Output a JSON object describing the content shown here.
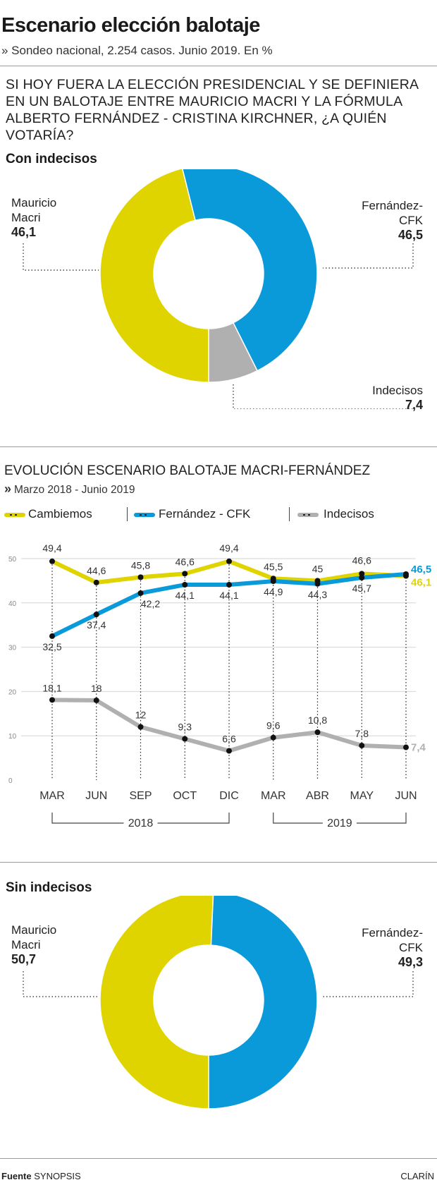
{
  "header": {
    "title": "Escenario elección balotaje",
    "subtitle": "» Sondeo nacional, 2.254 casos. Junio 2019. En %",
    "question": "SI HOY FUERA LA ELECCIÓN PRESIDENCIAL Y SE DEFINIERA EN UN BALOTAJE ENTRE MAURICIO MACRI Y LA FÓRMULA ALBERTO FERNÁNDEZ - CRISTINA KIRCHNER, ¿A QUIÉN VOTARÍA?"
  },
  "colors": {
    "macri": "#e0d400",
    "fernandez": "#0a9ad9",
    "indecisos": "#b0b0b0"
  },
  "chart_data": [
    {
      "type": "pie",
      "title": "Con indecisos",
      "labels": [
        "Mauricio Macri",
        "Fernández-CFK",
        "Indecisos"
      ],
      "label_lines": [
        [
          "Mauricio",
          "Macri"
        ],
        [
          "Fernández-",
          "CFK"
        ],
        [
          "Indecisos"
        ]
      ],
      "values": [
        46.1,
        46.5,
        7.4
      ],
      "value_labels": [
        "46,1",
        "46,5",
        "7,4"
      ]
    },
    {
      "type": "line",
      "title": "EVOLUCIÓN ESCENARIO BALOTAJE MACRI-FERNÁNDEZ",
      "subtitle": "Marzo 2018 - Junio 2019",
      "categories": [
        "MAR",
        "JUN",
        "SEP",
        "OCT",
        "DIC",
        "MAR",
        "ABR",
        "MAY",
        "JUN"
      ],
      "year_groups": [
        {
          "label": "2018",
          "from": 0,
          "to": 4
        },
        {
          "label": "2019",
          "from": 5,
          "to": 8
        }
      ],
      "ylim": [
        0,
        50
      ],
      "yticks": [
        "0",
        "10",
        "20",
        "30",
        "40",
        "50"
      ],
      "series": [
        {
          "name": "Cambiemos",
          "values": [
            49.4,
            44.6,
            45.8,
            46.6,
            49.4,
            45.5,
            45,
            46.6,
            46.1
          ],
          "labels": [
            "49,4",
            "44,6",
            "45,8",
            "46,6",
            "49,4",
            "45,5",
            "45",
            "46,6",
            "46,1"
          ]
        },
        {
          "name": "Fernández - CFK",
          "values": [
            32.5,
            37.4,
            42.2,
            44.1,
            44.1,
            44.9,
            44.3,
            45.7,
            46.5
          ],
          "labels": [
            "32,5",
            "37,4",
            "42,2",
            "44,1",
            "44,1",
            "44,9",
            "44,3",
            "45,7",
            "46,5"
          ]
        },
        {
          "name": "Indecisos",
          "values": [
            18.1,
            18,
            12,
            9.3,
            6.6,
            9.6,
            10.8,
            7.8,
            7.4
          ],
          "labels": [
            "18,1",
            "18",
            "12",
            "9,3",
            "6,6",
            "9,6",
            "10,8",
            "7,8",
            "7,4"
          ]
        }
      ]
    },
    {
      "type": "pie",
      "title": "Sin indecisos",
      "labels": [
        "Mauricio Macri",
        "Fernández-CFK"
      ],
      "label_lines": [
        [
          "Mauricio",
          "Macri"
        ],
        [
          "Fernández-",
          "CFK"
        ]
      ],
      "values": [
        50.7,
        49.3
      ],
      "value_labels": [
        "50,7",
        "49,3"
      ]
    }
  ],
  "footer": {
    "source_label": "Fuente",
    "source_name": "SYNOPSIS",
    "brand": "CLARÍN"
  }
}
